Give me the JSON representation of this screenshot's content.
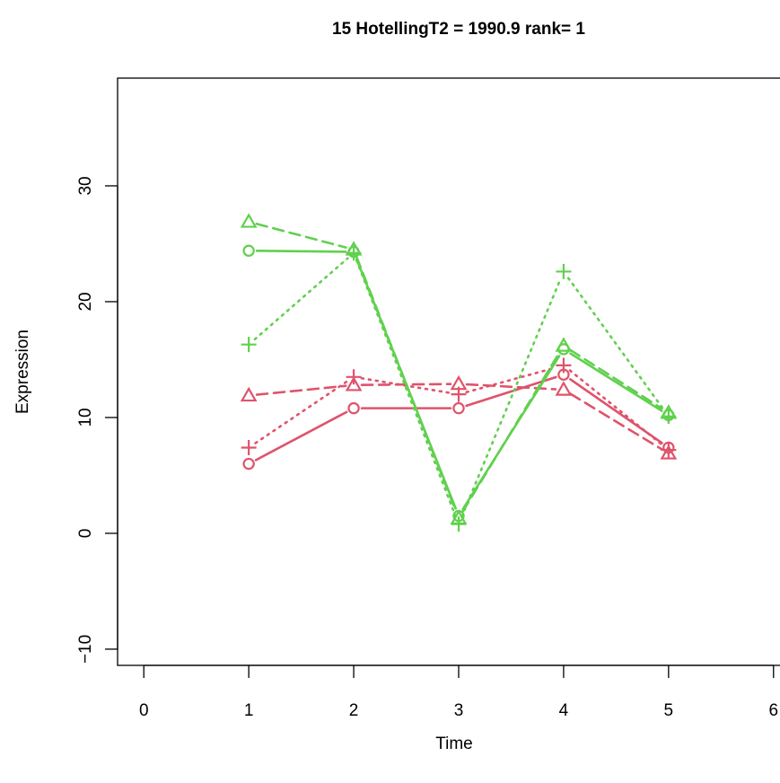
{
  "chart_data": {
    "type": "line",
    "title": "15  HotellingT2 = 1990.9  rank= 1",
    "xlabel": "Time",
    "ylabel": "Expression",
    "xlim": [
      -0.25,
      6.25
    ],
    "ylim": [
      -11.4,
      39.3
    ],
    "x_ticks": [
      0,
      1,
      2,
      3,
      4,
      5,
      6
    ],
    "y_ticks": [
      -10,
      0,
      10,
      20,
      30
    ],
    "x_tick_labels": [
      "0",
      "1",
      "2",
      "3",
      "4",
      "5",
      "6"
    ],
    "y_tick_labels": [
      "−10",
      "0",
      "10",
      "20",
      "30"
    ],
    "grid": false,
    "legend": "none",
    "series": [
      {
        "color": "#DF536B",
        "linestyle": "solid",
        "marker": "circle",
        "x": [
          1,
          2,
          3,
          4,
          5
        ],
        "values": [
          6.0,
          10.8,
          10.8,
          13.7,
          7.4
        ]
      },
      {
        "color": "#DF536B",
        "linestyle": "dashed",
        "marker": "triangle",
        "x": [
          1,
          2,
          3,
          4,
          5
        ],
        "values": [
          11.9,
          12.8,
          12.9,
          12.4,
          6.9
        ]
      },
      {
        "color": "#DF536B",
        "linestyle": "dotted",
        "marker": "plus",
        "x": [
          1,
          2,
          3,
          4,
          5
        ],
        "values": [
          7.4,
          13.5,
          12.0,
          14.5,
          7.2
        ]
      },
      {
        "color": "#61D04F",
        "linestyle": "solid",
        "marker": "circle",
        "x": [
          1,
          2,
          3,
          4,
          5
        ],
        "values": [
          24.4,
          24.3,
          1.5,
          15.9,
          10.2
        ]
      },
      {
        "color": "#61D04F",
        "linestyle": "dashed",
        "marker": "triangle",
        "x": [
          1,
          2,
          3,
          4,
          5
        ],
        "values": [
          26.9,
          24.5,
          1.3,
          16.2,
          10.4
        ]
      },
      {
        "color": "#61D04F",
        "linestyle": "dotted",
        "marker": "plus",
        "x": [
          1,
          2,
          3,
          4,
          5
        ],
        "values": [
          16.3,
          24.2,
          0.8,
          22.6,
          10.1
        ]
      }
    ]
  }
}
